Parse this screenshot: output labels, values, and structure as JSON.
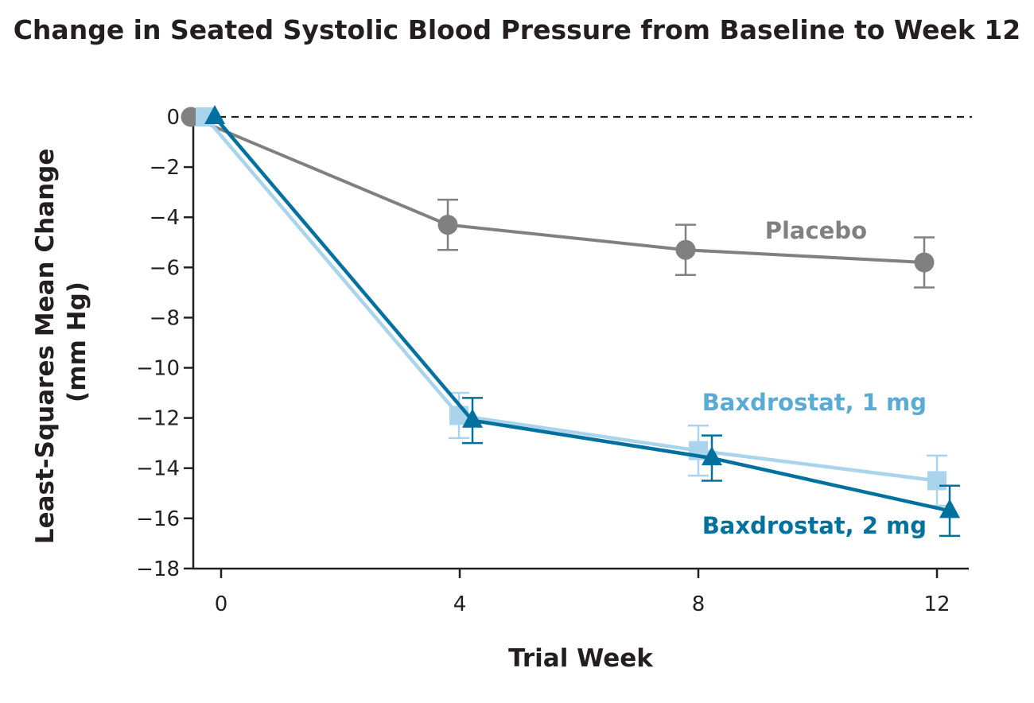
{
  "chart_data": {
    "type": "line",
    "title": "Change in Seated Systolic Blood Pressure from Baseline to Week 12",
    "xlabel": "Trial Week",
    "ylabel": [
      "Least-Squares Mean Change",
      "(mm Hg)"
    ],
    "x": [
      0,
      4,
      8,
      12
    ],
    "xticks": [
      "0",
      "4",
      "8",
      "12"
    ],
    "yticks": [
      "0",
      "−2",
      "−4",
      "−6",
      "−8",
      "−10",
      "−12",
      "−14",
      "−16",
      "−18"
    ],
    "ylim": [
      -18,
      0
    ],
    "reference_line": {
      "y": 0,
      "style": "dashed"
    },
    "grid": false,
    "series": [
      {
        "name": "Placebo",
        "color": "#808080",
        "marker": "circle",
        "values": [
          0,
          -4.3,
          -5.3,
          -5.8
        ],
        "error": [
          0,
          1.0,
          1.0,
          1.0
        ]
      },
      {
        "name": "Baxdrostat, 1 mg",
        "color": "#a9d4ec",
        "label_color": "#5aaad6",
        "marker": "square",
        "values": [
          0,
          -11.9,
          -13.3,
          -14.5
        ],
        "error": [
          0,
          0.9,
          1.0,
          1.0
        ]
      },
      {
        "name": "Baxdrostat, 2 mg",
        "color": "#00709e",
        "label_color": "#00709e",
        "marker": "triangle",
        "values": [
          0,
          -12.1,
          -13.6,
          -15.7
        ],
        "error": [
          0,
          0.9,
          0.9,
          1.0
        ]
      }
    ]
  }
}
